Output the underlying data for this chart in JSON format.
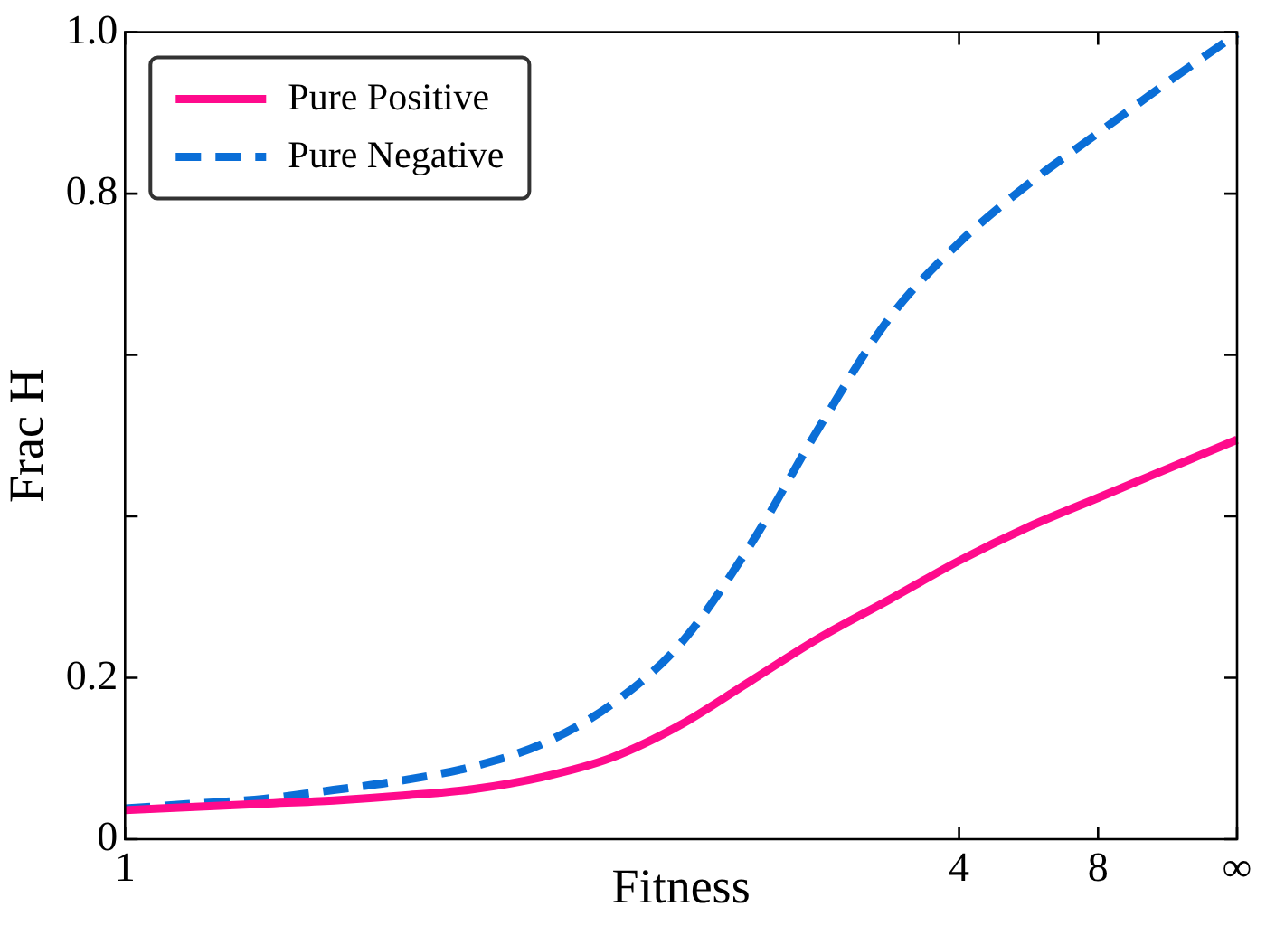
{
  "chart_data": {
    "type": "line",
    "xlabel": "Fitness",
    "ylabel": "Frac H",
    "ylim": [
      0,
      1
    ],
    "categories": [
      "1",
      null,
      null,
      null,
      null,
      null,
      null,
      null,
      null,
      null,
      null,
      null,
      "4",
      null,
      "8",
      null,
      "∞"
    ],
    "yticks": [
      0,
      0.2,
      {
        "value": 0.4,
        "label": null
      },
      {
        "value": 0.6,
        "label": null
      },
      0.8,
      {
        "value": 1,
        "label": "1.0"
      }
    ],
    "grid": false,
    "legend": "top left",
    "marker": "none",
    "series": [
      {
        "name": "Pure Positive",
        "color": "#ff0a8c",
        "line_style": "solid",
        "values": [
          0.036,
          0.04,
          0.044,
          0.048,
          0.054,
          0.062,
          0.077,
          0.101,
          0.142,
          0.196,
          0.25,
          0.297,
          0.345,
          0.387,
          0.423,
          0.459,
          0.495
        ]
      },
      {
        "name": "Pure Negative",
        "color": "#0a6ed7",
        "line_style": "dashed",
        "values": [
          0.038,
          0.044,
          0.05,
          0.061,
          0.073,
          0.09,
          0.118,
          0.167,
          0.243,
          0.365,
          0.512,
          0.646,
          0.739,
          0.812,
          0.875,
          0.938,
          0.998
        ]
      }
    ]
  }
}
